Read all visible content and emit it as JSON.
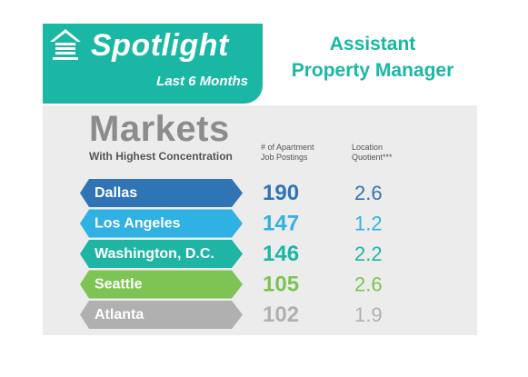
{
  "banner": {
    "title": "Spotlight",
    "subtitle": "Last 6 Months",
    "icon": "house-icon"
  },
  "job_title": {
    "line1": "Assistant",
    "line2": "Property Manager"
  },
  "section": {
    "title": "Markets",
    "subtitle": "With Highest Concentration"
  },
  "columns": {
    "postings_line1": "# of Apartment",
    "postings_line2": "Job Postings",
    "lq_line1": "Location",
    "lq_line2": "Quotient***"
  },
  "colors": {
    "banner": "#1ab7a4",
    "panel": "#ececec",
    "markets_text": "#8c8c8c"
  },
  "chart_data": {
    "type": "table",
    "title": "Markets",
    "subtitle": "With Highest Concentration",
    "columns": [
      "# of Apartment Job Postings",
      "Location Quotient***"
    ],
    "rows": [
      {
        "market": "Dallas",
        "postings": "190",
        "lq": "2.6",
        "color": "#2f74b5"
      },
      {
        "market": "Los Angeles",
        "postings": "147",
        "lq": "1.2",
        "color": "#2fb1e4"
      },
      {
        "market": "Washington, D.C.",
        "postings": "146",
        "lq": "2.2",
        "color": "#1eb5a5"
      },
      {
        "market": "Seattle",
        "postings": "105",
        "lq": "2.6",
        "color": "#7dc454"
      },
      {
        "market": "Atlanta",
        "postings": "102",
        "lq": "1.9",
        "color": "#b0b0b0"
      }
    ]
  }
}
